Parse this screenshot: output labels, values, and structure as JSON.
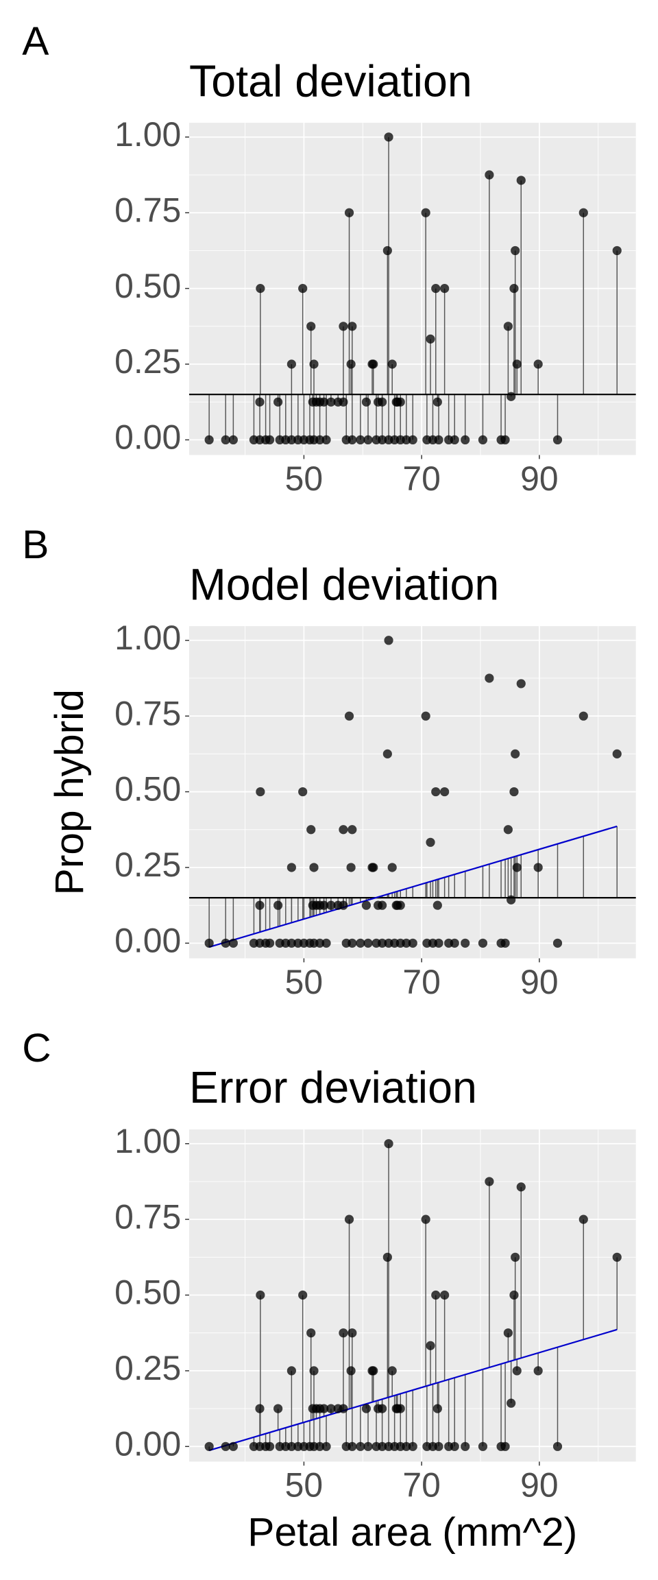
{
  "chart_data": {
    "type": "scatter",
    "panels": [
      {
        "label": "A",
        "title": "Total deviation",
        "segments": "total",
        "show_mean": true,
        "show_fit": false
      },
      {
        "label": "B",
        "title": "Model deviation",
        "segments": "model",
        "show_mean": true,
        "show_fit": true
      },
      {
        "label": "C",
        "title": "Error deviation",
        "segments": "error",
        "show_mean": false,
        "show_fit": true
      }
    ],
    "x_label": "Petal area (mm^2)",
    "y_label": "Prop hybrid",
    "x": [
      33.9,
      36.7,
      38.0,
      41.5,
      42.5,
      43.5,
      44.2,
      45.9,
      46.9,
      47.9,
      49.0,
      50,
      51.0,
      51.7,
      52.7,
      53.8,
      57.2,
      58.2,
      59.6,
      60.9,
      62.3,
      63.3,
      64.4,
      65.4,
      66.4,
      67.4,
      68.5,
      70.9,
      71.9,
      72.9,
      74.6,
      75.6,
      77.4,
      80.4,
      83.5,
      84.2,
      93.1,
      42.6,
      42.5,
      45.6,
      47.9,
      49.8,
      51.2,
      51.7,
      51.5,
      52.1,
      52.7,
      53.4,
      54.6,
      55.8,
      56.7,
      56.7,
      57.7,
      58.2,
      58.0,
      60.6,
      61.6,
      61.8,
      62.6,
      63.3,
      64.2,
      64.4,
      65.0,
      65.7,
      65.9,
      66.4,
      70.7,
      71.5,
      72.4,
      72.7,
      73.9,
      81.5,
      84.7,
      85.2,
      85.7,
      85.9,
      86.2,
      86.9,
      89.8,
      97.5,
      103.2
    ],
    "y": [
      0,
      0,
      0,
      0,
      0,
      0,
      0,
      0,
      0,
      0,
      0,
      0,
      0,
      0,
      0,
      0,
      0,
      0,
      0,
      0,
      0,
      0,
      0,
      0,
      0,
      0,
      0,
      0,
      0,
      0,
      0,
      0,
      0,
      0,
      0,
      0,
      0,
      0.5,
      0.125,
      0.125,
      0.25,
      0.5,
      0.375,
      0.25,
      0.125,
      0.125,
      0.125,
      0.125,
      0.125,
      0.125,
      0.375,
      0.125,
      0.75,
      0.375,
      0.25,
      0.125,
      0.25,
      0.25,
      0.125,
      0.125,
      0.625,
      1.0,
      0.25,
      0.125,
      0.125,
      0.125,
      0.75,
      0.333,
      0.5,
      0.125,
      0.5,
      0.875,
      0.375,
      0.143,
      0.5,
      0.625,
      0.25,
      0.857,
      0.25,
      0.75,
      0.625
    ],
    "mean": 0.15,
    "mean_color": "#000000",
    "fit": {
      "x": [
        33.9,
        103.2
      ],
      "y": [
        -0.013,
        0.386
      ],
      "color": "#0000cc"
    },
    "point_color": "#000000",
    "xlim": [
      30.5,
      106.4
    ],
    "ylim": [
      -0.05,
      1.047
    ],
    "xticks": [
      50,
      70,
      90
    ],
    "yticks": [
      {
        "value": 0,
        "label": "0.00"
      },
      {
        "value": 0.25,
        "label": "0.25"
      },
      {
        "value": 0.5,
        "label": "0.50"
      },
      {
        "value": 0.75,
        "label": "0.75"
      },
      {
        "value": 1,
        "label": "1.00"
      }
    ],
    "grid": true
  }
}
